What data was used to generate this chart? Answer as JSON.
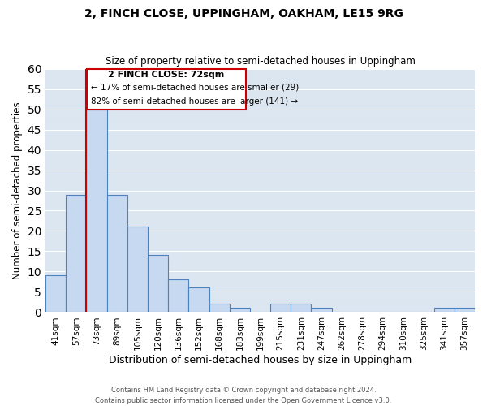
{
  "title": "2, FINCH CLOSE, UPPINGHAM, OAKHAM, LE15 9RG",
  "subtitle": "Size of property relative to semi-detached houses in Uppingham",
  "bar_labels": [
    "41sqm",
    "57sqm",
    "73sqm",
    "89sqm",
    "105sqm",
    "120sqm",
    "136sqm",
    "152sqm",
    "168sqm",
    "183sqm",
    "199sqm",
    "215sqm",
    "231sqm",
    "247sqm",
    "262sqm",
    "278sqm",
    "294sqm",
    "310sqm",
    "325sqm",
    "341sqm",
    "357sqm"
  ],
  "bar_values": [
    9,
    29,
    50,
    29,
    21,
    14,
    8,
    6,
    2,
    1,
    0,
    2,
    2,
    1,
    0,
    0,
    0,
    0,
    0,
    1,
    1
  ],
  "bar_color": "#c6d9f1",
  "bar_edge_color": "#4f81bd",
  "xlabel": "Distribution of semi-detached houses by size in Uppingham",
  "ylabel": "Number of semi-detached properties",
  "ylim": [
    0,
    60
  ],
  "yticks": [
    0,
    5,
    10,
    15,
    20,
    25,
    30,
    35,
    40,
    45,
    50,
    55,
    60
  ],
  "property_line_label": "2 FINCH CLOSE: 72sqm",
  "annotation_line1": "← 17% of semi-detached houses are smaller (29)",
  "annotation_line2": "82% of semi-detached houses are larger (141) →",
  "annotation_box_color": "#ffffff",
  "annotation_box_edge_color": "#cc0000",
  "property_line_color": "#cc0000",
  "footer1": "Contains HM Land Registry data © Crown copyright and database right 2024.",
  "footer2": "Contains public sector information licensed under the Open Government Licence v3.0.",
  "background_color": "#ffffff",
  "axes_bg_color": "#dce6f1",
  "grid_color": "#ffffff"
}
